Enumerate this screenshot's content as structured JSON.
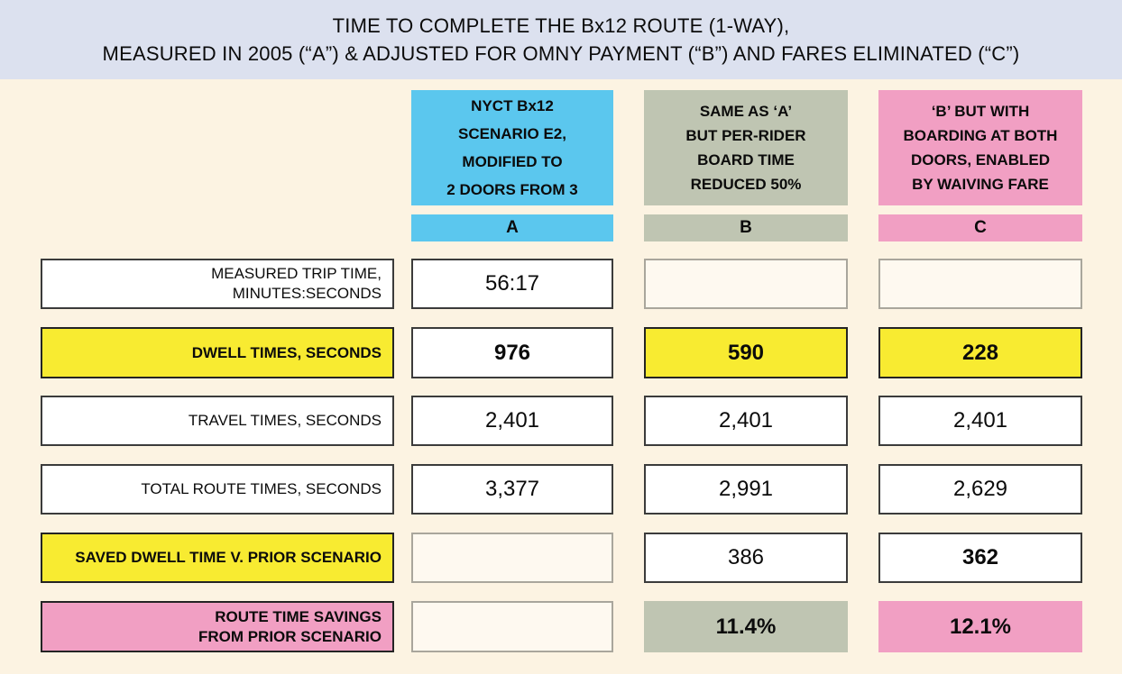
{
  "title": {
    "text": "TIME TO COMPLETE THE Bx12 ROUTE (1-WAY),\nMEASURED IN 2005 (“A”) & ADJUSTED FOR OMNY PAYMENT (“B”) AND FARES ELIMINATED (“C”)"
  },
  "colors": {
    "header-band": "#dce1ef",
    "canvas-bg": "#fcf3e2",
    "col-a": "#5bc7ee",
    "col-b": "#bfc5b2",
    "col-c": "#f19fc3",
    "highlight-yellow": "#f8eb31",
    "empty-fill": "#fef9f0",
    "empty-border": "#a9a69c",
    "box-border": "#3b3b3b"
  },
  "columns": [
    {
      "letter": "A",
      "header": "NYCT Bx12\nSCENARIO E2,\nMODIFIED TO\n2 DOORS FROM 3"
    },
    {
      "letter": "B",
      "header": "SAME AS ‘A’\nBUT PER-RIDER\nBOARD TIME\nREDUCED 50%"
    },
    {
      "letter": "C",
      "header": "‘B’ BUT WITH\nBOARDING AT BOTH\nDOORS, ENABLED\nBY WAIVING FARE"
    }
  ],
  "rows": [
    {
      "label": "MEASURED TRIP TIME,\nMINUTES:SECONDS",
      "cells": [
        {
          "value": "56:17"
        },
        {
          "value": ""
        },
        {
          "value": ""
        }
      ]
    },
    {
      "label": "DWELL TIMES, SECONDS",
      "cells": [
        {
          "value": "976"
        },
        {
          "value": "590"
        },
        {
          "value": "228"
        }
      ]
    },
    {
      "label": "TRAVEL TIMES, SECONDS",
      "cells": [
        {
          "value": "2,401"
        },
        {
          "value": "2,401"
        },
        {
          "value": "2,401"
        }
      ]
    },
    {
      "label": "TOTAL ROUTE TIMES, SECONDS",
      "cells": [
        {
          "value": "3,377"
        },
        {
          "value": "2,991"
        },
        {
          "value": "2,629"
        }
      ]
    },
    {
      "label": "SAVED DWELL TIME V. PRIOR SCENARIO",
      "cells": [
        {
          "value": ""
        },
        {
          "value": "386"
        },
        {
          "value": "362"
        }
      ]
    },
    {
      "label": "ROUTE TIME SAVINGS\nFROM PRIOR SCENARIO",
      "cells": [
        {
          "value": ""
        },
        {
          "value": "11.4%"
        },
        {
          "value": "12.1%"
        }
      ]
    }
  ],
  "chart_data": {
    "type": "table",
    "title": "TIME TO COMPLETE THE Bx12 ROUTE (1-WAY), MEASURED IN 2005 (“A”) & ADJUSTED FOR OMNY PAYMENT (“B”) AND FARES ELIMINATED (“C”)",
    "columns": [
      {
        "id": "A",
        "description": "NYCT Bx12 SCENARIO E2, MODIFIED TO 2 DOORS FROM 3",
        "color": "#5bc7ee"
      },
      {
        "id": "B",
        "description": "SAME AS ‘A’ BUT PER-RIDER BOARD TIME REDUCED 50%",
        "color": "#bfc5b2"
      },
      {
        "id": "C",
        "description": "‘B’ BUT WITH BOARDING AT BOTH DOORS, ENABLED BY WAIVING FARE",
        "color": "#f19fc3"
      }
    ],
    "rows": [
      {
        "label": "MEASURED TRIP TIME, MINUTES:SECONDS",
        "A": "56:17",
        "B": null,
        "C": null
      },
      {
        "label": "DWELL TIMES, SECONDS",
        "A": 976,
        "B": 590,
        "C": 228
      },
      {
        "label": "TRAVEL TIMES, SECONDS",
        "A": 2401,
        "B": 2401,
        "C": 2401
      },
      {
        "label": "TOTAL ROUTE TIMES, SECONDS",
        "A": 3377,
        "B": 2991,
        "C": 2629
      },
      {
        "label": "SAVED DWELL TIME V. PRIOR SCENARIO",
        "A": null,
        "B": 386,
        "C": 362
      },
      {
        "label": "ROUTE TIME SAVINGS FROM PRIOR SCENARIO",
        "A": null,
        "B": "11.4%",
        "C": "12.1%"
      }
    ]
  }
}
